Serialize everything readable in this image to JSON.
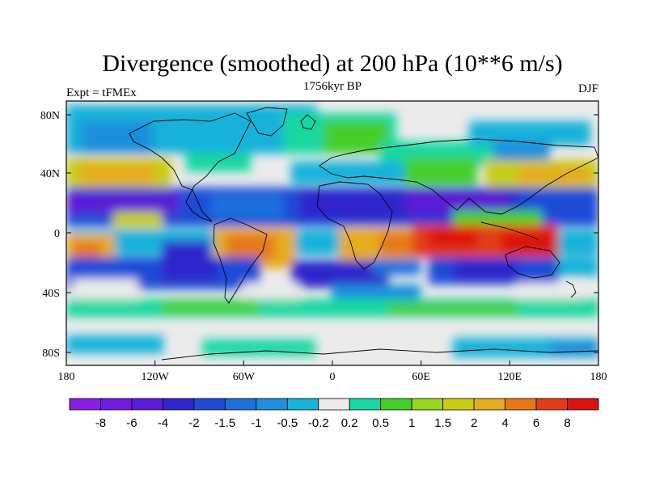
{
  "title": "Divergence (smoothed) at 200 hPa (10**6 m/s)",
  "left_label": "Expt = tFMEx",
  "center_label": "1756kyr BP",
  "right_label": "DJF",
  "y_ticks": [
    "80N",
    "40N",
    "0",
    "40S",
    "80S"
  ],
  "x_ticks": [
    "180",
    "120W",
    "60W",
    "0",
    "60E",
    "120E",
    "180"
  ],
  "colorbar": {
    "colors": [
      "#8a1ee6",
      "#7419e0",
      "#5a1cd6",
      "#2e26cc",
      "#1f4bd8",
      "#1c70dc",
      "#1d8fdc",
      "#19b2da",
      "#ebebeb",
      "#16d8a0",
      "#44cf2c",
      "#96d71e",
      "#c8cd14",
      "#e6ac1c",
      "#e6781a",
      "#e23c18",
      "#dc1410"
    ],
    "labels": [
      "-8",
      "-6",
      "-4",
      "-2",
      "-1.5",
      "-1",
      "-0.5",
      "-0.2",
      "0.2",
      "0.5",
      "1",
      "1.5",
      "2",
      "4",
      "6",
      "8"
    ]
  }
}
